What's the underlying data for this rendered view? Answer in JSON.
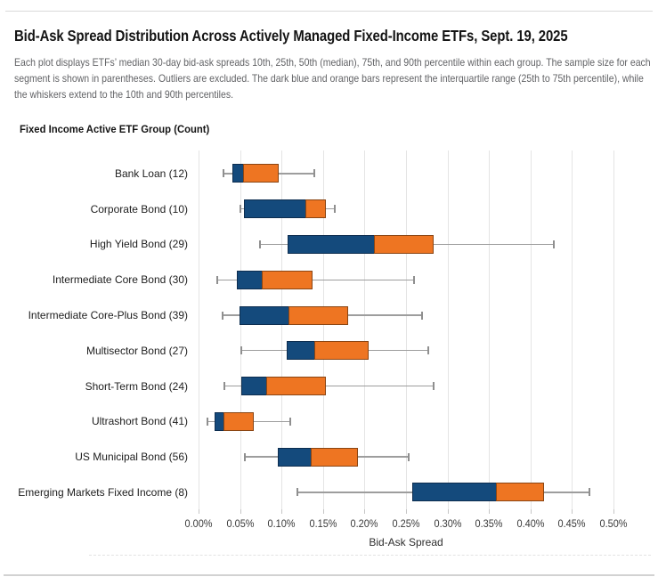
{
  "page": {
    "title": "Bid-Ask Spread Distribution Across Actively Managed Fixed-Income ETFs, Sept. 19, 2025",
    "subtitle": "Each plot displays ETFs’ median 30-day bid-ask spreads 10th, 25th, 50th (median), 75th, and 90th percentile within each group. The sample size for each segment is shown in parentheses. Outliers are excluded. The dark blue and orange bars represent the interquartile range (25th to 75th percentile), while the whiskers extend to the 10th and 90th percentiles."
  },
  "chart_data": {
    "type": "box",
    "orientation": "horizontal",
    "title": "Bid-Ask Spread Distribution Across Actively Managed Fixed-Income ETFs, Sept. 19, 2025",
    "group_axis_label": "Fixed Income Active ETF Group (Count)",
    "xlabel": "Bid-Ask Spread",
    "value_unit": "percent",
    "xlim": [
      0,
      0.5
    ],
    "grid": "vertical",
    "whisker_range": "10th to 90th percentile",
    "box_range": "25th to 75th percentile (dark blue 25th-50th, orange 50th-75th)",
    "x_ticks": [
      {
        "value": 0.0,
        "label": "0.00%"
      },
      {
        "value": 0.05,
        "label": "0.05%"
      },
      {
        "value": 0.1,
        "label": "0.10%"
      },
      {
        "value": 0.15,
        "label": "0.15%"
      },
      {
        "value": 0.2,
        "label": "0.20%"
      },
      {
        "value": 0.25,
        "label": "0.25%"
      },
      {
        "value": 0.3,
        "label": "0.30%"
      },
      {
        "value": 0.35,
        "label": "0.35%"
      },
      {
        "value": 0.4,
        "label": "0.40%"
      },
      {
        "value": 0.45,
        "label": "0.45%"
      },
      {
        "value": 0.5,
        "label": "0.50%"
      }
    ],
    "colors": {
      "iqr_25_50_fill": "#144a7c",
      "iqr_25_50_border": "#0d2d4f",
      "iqr_50_75_fill": "#ee7522",
      "iqr_50_75_border": "#8a4513",
      "whisker": "#9d9d9d"
    },
    "rows": [
      {
        "label": "Bank Loan (12)",
        "count": 12,
        "p10": 0.03,
        "p25": 0.041,
        "p50": 0.055,
        "p75": 0.097,
        "p90": 0.14
      },
      {
        "label": "Corporate Bond (10)",
        "count": 10,
        "p10": 0.05,
        "p25": 0.055,
        "p50": 0.13,
        "p75": 0.153,
        "p90": 0.164
      },
      {
        "label": "High Yield Bond (29)",
        "count": 29,
        "p10": 0.074,
        "p25": 0.107,
        "p50": 0.212,
        "p75": 0.283,
        "p90": 0.428
      },
      {
        "label": "Intermediate Core Bond (30)",
        "count": 30,
        "p10": 0.023,
        "p25": 0.046,
        "p50": 0.077,
        "p75": 0.137,
        "p90": 0.26
      },
      {
        "label": "Intermediate Core-Plus Bond (39)",
        "count": 39,
        "p10": 0.029,
        "p25": 0.049,
        "p50": 0.109,
        "p75": 0.18,
        "p90": 0.269
      },
      {
        "label": "Multisector Bond (27)",
        "count": 27,
        "p10": 0.052,
        "p25": 0.106,
        "p50": 0.141,
        "p75": 0.205,
        "p90": 0.277
      },
      {
        "label": "Short-Term Bond (24)",
        "count": 24,
        "p10": 0.031,
        "p25": 0.052,
        "p50": 0.083,
        "p75": 0.153,
        "p90": 0.283
      },
      {
        "label": "Ultrashort Bond (41)",
        "count": 41,
        "p10": 0.011,
        "p25": 0.019,
        "p50": 0.031,
        "p75": 0.066,
        "p90": 0.11
      },
      {
        "label": "US Municipal Bond (56)",
        "count": 56,
        "p10": 0.056,
        "p25": 0.095,
        "p50": 0.136,
        "p75": 0.192,
        "p90": 0.253
      },
      {
        "label": "Emerging Markets Fixed Income (8)",
        "count": 8,
        "p10": 0.119,
        "p25": 0.258,
        "p50": 0.359,
        "p75": 0.416,
        "p90": 0.471
      }
    ]
  }
}
